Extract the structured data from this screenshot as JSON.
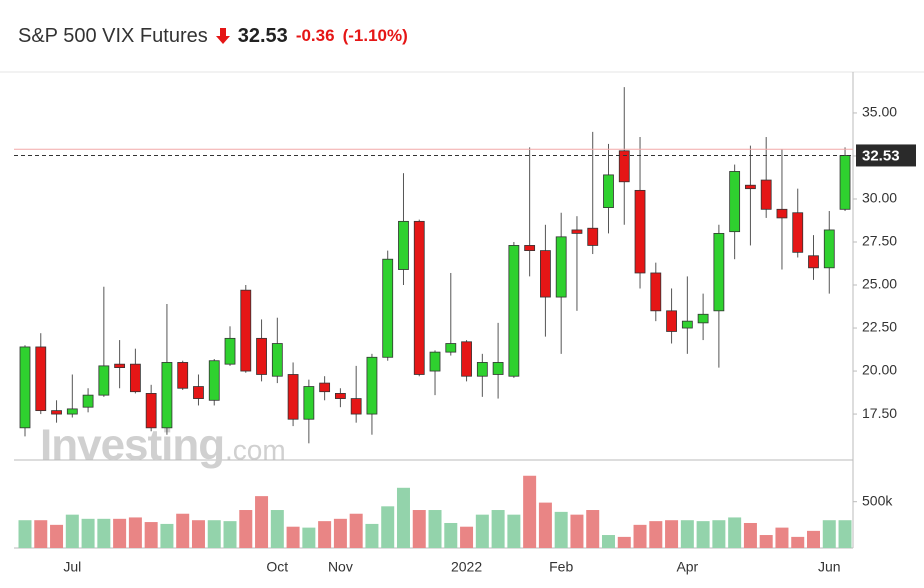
{
  "chart_data": {
    "type": "candlestick",
    "title": "S&P 500 VIX Futures",
    "change": -0.36,
    "change_pct": "(-1.10%)",
    "watermark": [
      "Investing",
      ".com"
    ],
    "categories": [
      null,
      null,
      null,
      "Jul",
      null,
      null,
      null,
      null,
      null,
      null,
      null,
      null,
      null,
      null,
      null,
      null,
      "Oct",
      null,
      null,
      null,
      "Nov",
      null,
      null,
      null,
      null,
      null,
      null,
      null,
      "2022",
      null,
      null,
      null,
      null,
      null,
      "Feb",
      null,
      null,
      null,
      null,
      null,
      null,
      null,
      "Apr",
      null,
      null,
      null,
      null,
      null,
      null,
      null,
      null,
      "Jun",
      null
    ],
    "open": [
      16.7,
      21.4,
      17.7,
      17.5,
      17.9,
      18.6,
      20.4,
      20.4,
      18.7,
      16.7,
      20.5,
      19.1,
      18.3,
      20.4,
      24.7,
      21.9,
      19.7,
      19.8,
      17.2,
      19.3,
      18.7,
      18.4,
      17.5,
      20.8,
      25.9,
      28.7,
      20.0,
      21.1,
      21.7,
      19.7,
      19.8,
      19.7,
      27.3,
      27.0,
      24.3,
      28.2,
      28.3,
      29.5,
      32.8,
      30.5,
      25.7,
      23.5,
      22.5,
      22.8,
      23.5,
      28.1,
      30.8,
      31.1,
      29.4,
      29.2,
      26.7,
      26.0,
      29.4
    ],
    "high": [
      21.5,
      22.2,
      18.3,
      19.8,
      19.0,
      24.9,
      21.8,
      21.3,
      19.2,
      23.9,
      20.6,
      19.8,
      20.7,
      22.6,
      25.0,
      23.0,
      23.1,
      20.5,
      19.5,
      19.7,
      19.0,
      20.3,
      21.0,
      27.0,
      31.5,
      28.8,
      21.2,
      25.7,
      21.8,
      21.0,
      22.8,
      27.5,
      33.0,
      28.5,
      29.2,
      29.0,
      33.9,
      33.2,
      36.5,
      33.6,
      26.3,
      24.8,
      25.5,
      24.5,
      28.5,
      32.0,
      33.1,
      33.6,
      32.9,
      30.6,
      27.9,
      29.3,
      33.0
    ],
    "low": [
      16.2,
      17.5,
      17.0,
      17.3,
      17.6,
      18.5,
      19.0,
      18.7,
      16.5,
      16.3,
      18.9,
      18.0,
      18.0,
      20.3,
      19.9,
      19.4,
      19.3,
      16.8,
      15.8,
      18.3,
      17.9,
      17.0,
      16.3,
      20.6,
      25.0,
      19.7,
      18.6,
      20.9,
      19.4,
      18.5,
      18.4,
      19.6,
      25.5,
      22.0,
      21.0,
      23.5,
      26.8,
      28.0,
      28.5,
      24.8,
      22.9,
      21.6,
      21.0,
      21.8,
      20.2,
      26.5,
      27.3,
      28.9,
      25.9,
      26.6,
      25.3,
      24.5,
      29.3
    ],
    "close": [
      21.4,
      17.7,
      17.5,
      17.8,
      18.6,
      20.3,
      20.2,
      18.8,
      16.7,
      20.5,
      19.0,
      18.4,
      20.6,
      21.9,
      20.0,
      19.8,
      21.6,
      17.2,
      19.1,
      18.8,
      18.4,
      17.5,
      20.8,
      26.5,
      28.7,
      19.8,
      21.1,
      21.6,
      19.7,
      20.5,
      20.5,
      27.3,
      27.0,
      24.3,
      27.8,
      28.0,
      27.3,
      31.4,
      31.0,
      25.7,
      23.5,
      22.3,
      22.9,
      23.3,
      28.0,
      31.6,
      30.6,
      29.4,
      28.9,
      26.9,
      26.0,
      28.2,
      32.53
    ],
    "volume": [
      300000,
      300000,
      250000,
      360000,
      315000,
      315000,
      315000,
      330000,
      280000,
      260000,
      370000,
      300000,
      300000,
      290000,
      410000,
      560000,
      410000,
      230000,
      220000,
      290000,
      315000,
      370000,
      260000,
      450000,
      650000,
      410000,
      410000,
      270000,
      230000,
      360000,
      410000,
      360000,
      780000,
      490000,
      390000,
      360000,
      410000,
      140000,
      120000,
      250000,
      290000,
      300000,
      300000,
      290000,
      300000,
      330000,
      270000,
      140000,
      220000,
      120000,
      185000,
      300000,
      300000
    ],
    "prev_close": 32.89,
    "ylim": [
      14.83,
      37.38
    ],
    "yticks": [
      {
        "value": 17.5,
        "label": "17.50"
      },
      {
        "value": 20,
        "label": "20.00"
      },
      {
        "value": 22.5,
        "label": "22.50"
      },
      {
        "value": 25,
        "label": "25.00"
      },
      {
        "value": 27.5,
        "label": "27.50"
      },
      {
        "value": 30,
        "label": "30.00"
      },
      {
        "value": 32.5,
        "label": "32.50"
      },
      {
        "value": 35,
        "label": "35.00"
      }
    ],
    "volume_ylim": [
      0,
      950000
    ],
    "volume_yticks": [
      {
        "value": 500000,
        "label": "500k"
      }
    ],
    "up_color": "#2fd12f",
    "down_color": "#e51616",
    "volume_up_color": "#93d3ab",
    "volume_down_color": "#e98585",
    "prev_close_color": "#f2a8a8",
    "grid": false
  }
}
